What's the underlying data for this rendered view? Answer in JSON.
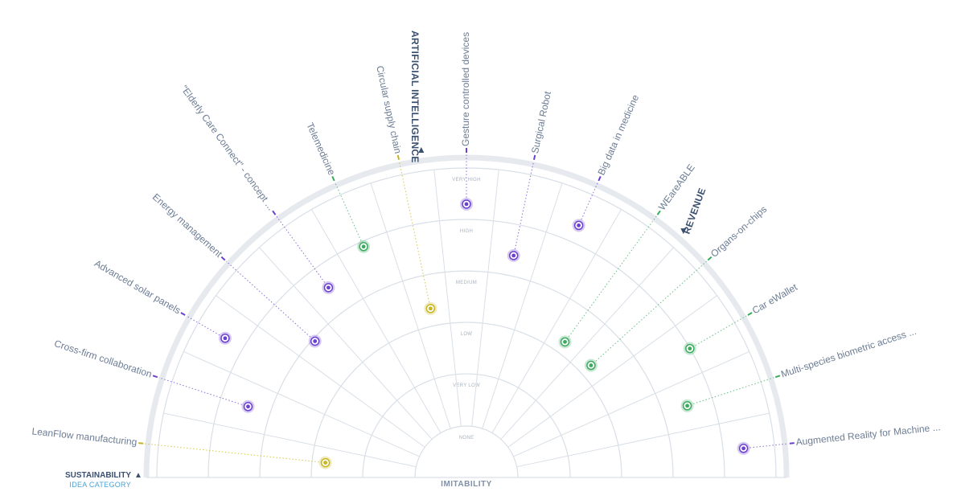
{
  "colors": {
    "purple": "#6b3fd0",
    "green": "#3aaa5e",
    "yellow": "#c8b41e",
    "ring": "#d9dfe7",
    "outer": "#e6e9ee",
    "label": "#6d7d95",
    "title": "#3b4f6e",
    "accent_blue": "#4aa3d6"
  },
  "axis": {
    "bottom_label": "IMITABILITY",
    "rings": [
      "NONE",
      "VERY LOW",
      "LOW",
      "MEDIUM",
      "HIGH",
      "VERY HIGH"
    ]
  },
  "sectors": {
    "sustainability": "SUSTAINABILITY",
    "artificial_intelligence": "ARTIFICIAL INTELLIGENCE",
    "revenue": "REVENUE"
  },
  "legend": {
    "title": "SUSTAINABILITY",
    "subtitle": "IDEA CATEGORY"
  },
  "ideas": [
    {
      "label": "LeanFlow manufacturing",
      "category": "yellow",
      "level": 1.75
    },
    {
      "label": "Cross-firm collaboration",
      "category": "purple",
      "level": 3.45
    },
    {
      "label": "Advanced solar panels",
      "category": "purple",
      "level": 4.4
    },
    {
      "label": "Energy management",
      "category": "purple",
      "level": 2.95
    },
    {
      "label": "\"Elderly Care Connect\" - concept ...",
      "category": "purple",
      "level": 3.55
    },
    {
      "label": "Telemedicine",
      "category": "green",
      "level": 3.9
    },
    {
      "label": "Circular supply chain",
      "category": "yellow",
      "level": 2.35
    },
    {
      "label": "Gesture controlled devices",
      "category": "purple",
      "level": 4.3
    },
    {
      "label": "Surgical Robot",
      "category": "purple",
      "level": 3.4
    },
    {
      "label": "Big data in medicine",
      "category": "purple",
      "level": 4.35
    },
    {
      "label": "WEareABLE",
      "category": "green",
      "level": 2.25
    },
    {
      "label": "Organs-on-chips",
      "category": "green",
      "level": 2.25
    },
    {
      "label": "Car eWallet",
      "category": "green",
      "level": 4.0
    },
    {
      "label": "Multi-species biometric access ...",
      "category": "green",
      "level": 3.5
    },
    {
      "label": "Augmented Reality for Machine ...",
      "category": "purple",
      "level": 4.4
    }
  ]
}
